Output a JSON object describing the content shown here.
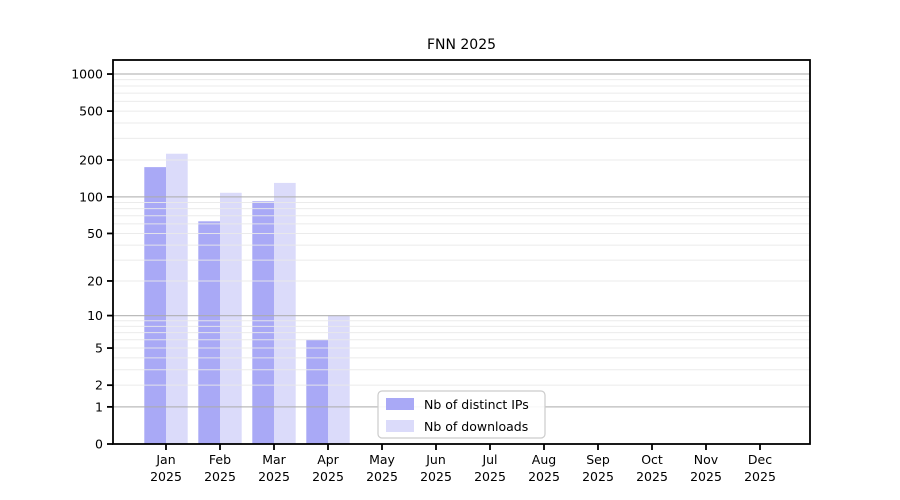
{
  "chart_data": {
    "type": "bar",
    "title": "FNN 2025",
    "categories": [
      {
        "month": "Jan",
        "year": "2025"
      },
      {
        "month": "Feb",
        "year": "2025"
      },
      {
        "month": "Mar",
        "year": "2025"
      },
      {
        "month": "Apr",
        "year": "2025"
      },
      {
        "month": "May",
        "year": "2025"
      },
      {
        "month": "Jun",
        "year": "2025"
      },
      {
        "month": "Jul",
        "year": "2025"
      },
      {
        "month": "Aug",
        "year": "2025"
      },
      {
        "month": "Sep",
        "year": "2025"
      },
      {
        "month": "Oct",
        "year": "2025"
      },
      {
        "month": "Nov",
        "year": "2025"
      },
      {
        "month": "Dec",
        "year": "2025"
      }
    ],
    "series": [
      {
        "name": "Nb of distinct IPs",
        "color": "#a9a9f6",
        "values": [
          175,
          63,
          92,
          6,
          0,
          0,
          0,
          0,
          0,
          0,
          0,
          0
        ]
      },
      {
        "name": "Nb of downloads",
        "color": "#dbdbfa",
        "values": [
          225,
          108,
          130,
          10,
          0,
          0,
          0,
          0,
          0,
          0,
          0,
          0
        ]
      }
    ],
    "yscale": "log1p",
    "ylim": [
      0,
      1300
    ],
    "yticks": [
      0,
      1,
      2,
      5,
      10,
      20,
      50,
      100,
      200,
      500,
      1000
    ],
    "grid": {
      "on": true,
      "major_at": [
        1,
        10,
        100,
        1000
      ],
      "major_color": "#aaaaaa",
      "minor_color": "#e9e9e9"
    },
    "legend": {
      "position": "lower center",
      "border_color": "#cccccc",
      "background": "#ffffff"
    },
    "axis_color": "#000000",
    "text_color": "#000000"
  }
}
